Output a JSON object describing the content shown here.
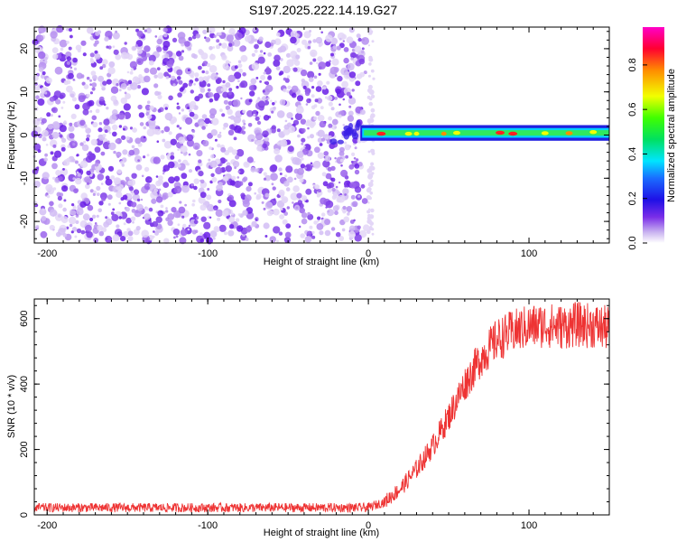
{
  "title": "S197.2025.222.14.19.G27",
  "chart_data": [
    {
      "type": "heatmap",
      "xlabel": "Height of straight line (km)",
      "ylabel": "Frequency (Hz)",
      "xlim": [
        -208,
        150
      ],
      "ylim": [
        -25,
        25
      ],
      "xticks": [
        -200,
        -100,
        0,
        100
      ],
      "yticks": [
        -20,
        -10,
        0,
        10,
        20
      ],
      "xtick_labels": [
        "-200",
        "-100",
        "0",
        "100"
      ],
      "ytick_labels": [
        "-20",
        "-10",
        "0",
        "10",
        "20"
      ],
      "colorbar": {
        "label": "Normalized spectral amplitude",
        "range": [
          0,
          0.97
        ],
        "ticks": [
          0.0,
          0.2,
          0.4,
          0.6,
          0.8
        ],
        "tick_labels": [
          "0.0",
          "0.2",
          "0.4",
          "0.6",
          "0.8"
        ]
      },
      "noise_region_x": [
        -208,
        0
      ],
      "signal_band": {
        "x_range": [
          -5,
          150
        ],
        "frequency_center": 0.5,
        "frequency_halfwidth": 1.6,
        "peak_amplitude": 0.95
      }
    },
    {
      "type": "line",
      "xlabel": "Height of straight line (km)",
      "ylabel": "SNR (10 * v/v)",
      "xlim": [
        -208,
        150
      ],
      "ylim": [
        0,
        660
      ],
      "xticks": [
        -200,
        -100,
        0,
        100
      ],
      "yticks": [
        0,
        200,
        400,
        600
      ],
      "xtick_labels": [
        "-200",
        "-100",
        "0",
        "100"
      ],
      "ytick_labels": [
        "0",
        "200",
        "400",
        "600"
      ],
      "series": [
        {
          "name": "SNR",
          "color": "#ee3333",
          "x": [
            -208,
            -150,
            -100,
            -50,
            0,
            10,
            20,
            30,
            40,
            50,
            60,
            70,
            80,
            90,
            100,
            110,
            120,
            130,
            140,
            150
          ],
          "y": [
            22,
            22,
            22,
            22,
            22,
            40,
            80,
            140,
            210,
            300,
            400,
            480,
            535,
            560,
            575,
            580,
            575,
            582,
            578,
            570
          ]
        }
      ]
    }
  ]
}
